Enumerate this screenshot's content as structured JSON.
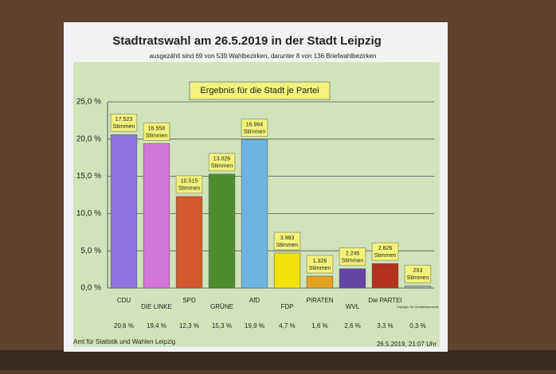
{
  "chart_data": {
    "type": "bar",
    "title": "Stadtratswahl am 26.5.2019 in der Stadt Leipzig",
    "subtitle": "ausgezählt sind 69 von 539 Wahlbezirken, darunter 8 von 136 Briefwahlbezirken",
    "panel_title": "Ergebnis für die Stadt je Partei",
    "categories": [
      "CDU",
      "DIE LINKE",
      "SPD",
      "GRÜNE",
      "AfD",
      "FDP",
      "PIRATEN",
      "WVL",
      "Die PARTEI",
      "Leipziger für Grundeinkommen"
    ],
    "values": [
      20.6,
      19.4,
      12.3,
      15.3,
      19.9,
      4.7,
      1.6,
      2.6,
      3.3,
      0.3
    ],
    "value_labels": [
      "20,6 %",
      "19,4 %",
      "12,3 %",
      "15,3 %",
      "19,9 %",
      "4,7 %",
      "1,6 %",
      "2,6 %",
      "3,3 %",
      "0,3 %"
    ],
    "vote_labels": [
      "17.523",
      "16.558",
      "10.515",
      "13.026",
      "16.964",
      "3.983",
      "1.326",
      "2.246",
      "2.826",
      "293"
    ],
    "vote_unit": "Stimmen",
    "colors": [
      "#8c74dc",
      "#d274d8",
      "#d4582e",
      "#4f8c30",
      "#6cb4e2",
      "#f2e20a",
      "#e4a020",
      "#6444a4",
      "#b4321e",
      "#a8a8a8"
    ],
    "ylim": [
      0,
      25
    ],
    "yticks": [
      {
        "value": 0,
        "label": "0,0 %"
      },
      {
        "value": 5,
        "label": "5,0 %"
      },
      {
        "value": 10,
        "label": "10,0 %"
      },
      {
        "value": 15,
        "label": "15,0 %"
      },
      {
        "value": 20,
        "label": "20,0 %"
      },
      {
        "value": 25,
        "label": "25,0 %"
      }
    ],
    "grid": true,
    "footer_left": "Amt für Statistik und Wahlen Leipzig",
    "footer_right": "26.5.2019, 21:07 Uhr"
  }
}
